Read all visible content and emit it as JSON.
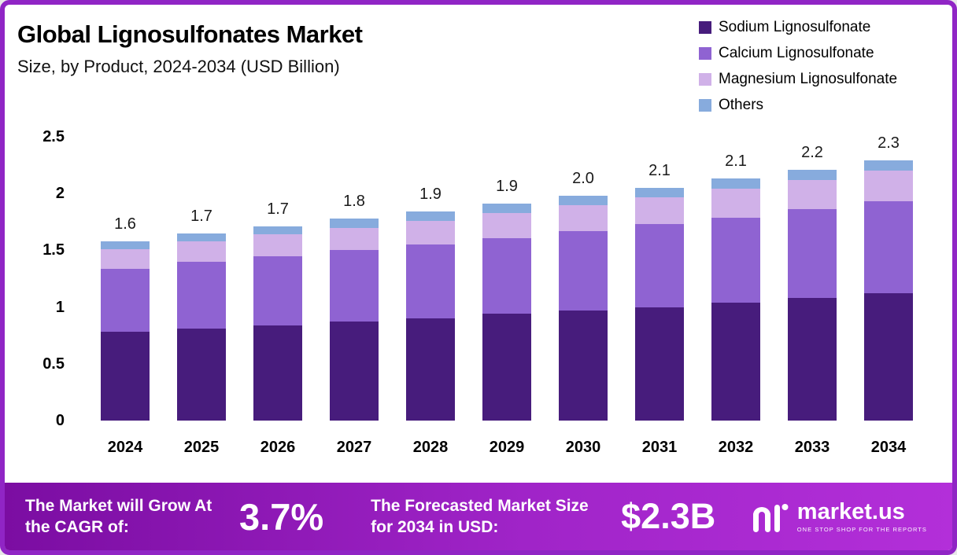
{
  "header": {
    "title": "Global Lignosulfonates Market",
    "subtitle": "Size, by Product, 2024-2034 (USD Billion)"
  },
  "legend": [
    {
      "label": "Sodium Lignosulfonate",
      "color": "#471c7c"
    },
    {
      "label": "Calcium Lignosulfonate",
      "color": "#8f63d2"
    },
    {
      "label": "Magnesium Lignosulfonate",
      "color": "#d0b1e8"
    },
    {
      "label": " Others",
      "color": "#87abdd"
    }
  ],
  "chart_data": {
    "type": "bar",
    "stacked": true,
    "title": "Global Lignosulfonates Market Size, by Product, 2024-2034 (USD Billion)",
    "categories": [
      "2024",
      "2025",
      "2026",
      "2027",
      "2028",
      "2029",
      "2030",
      "2031",
      "2032",
      "2033",
      "2034"
    ],
    "series": [
      {
        "name": "Sodium Lignosulfonate",
        "color": "#471c7c",
        "values": [
          0.78,
          0.81,
          0.84,
          0.87,
          0.9,
          0.94,
          0.97,
          1.0,
          1.04,
          1.08,
          1.12
        ]
      },
      {
        "name": "Calcium Lignosulfonate",
        "color": "#8f63d2",
        "values": [
          0.56,
          0.59,
          0.61,
          0.63,
          0.65,
          0.67,
          0.7,
          0.73,
          0.75,
          0.78,
          0.81
        ]
      },
      {
        "name": "Magnesium Lignosulfonate",
        "color": "#d0b1e8",
        "values": [
          0.17,
          0.18,
          0.19,
          0.2,
          0.21,
          0.22,
          0.23,
          0.24,
          0.25,
          0.26,
          0.27
        ]
      },
      {
        "name": "Others",
        "color": "#87abdd",
        "values": [
          0.07,
          0.07,
          0.07,
          0.08,
          0.08,
          0.08,
          0.08,
          0.08,
          0.09,
          0.09,
          0.09
        ]
      }
    ],
    "totals": [
      "1.6",
      "1.7",
      "1.7",
      "1.8",
      "1.9",
      "1.9",
      "2.0",
      "2.1",
      "2.1",
      "2.2",
      "2.3"
    ],
    "ylim": [
      0,
      2.5
    ],
    "yticks": [
      0,
      0.5,
      1,
      1.5,
      2,
      2.5
    ],
    "ytick_labels": [
      "0",
      "0.5",
      "1",
      "1.5",
      "2",
      "2.5"
    ],
    "xlabel": "",
    "ylabel": "",
    "grid": false,
    "legend_position": "top-right"
  },
  "banner": {
    "cagr_label": "The Market will Grow At the CAGR of:",
    "cagr_value": "3.7%",
    "forecast_label": "The Forecasted Market Size for 2034 in USD:",
    "forecast_value": "$2.3B",
    "brand": "market.us",
    "brand_tagline": "ONE STOP SHOP FOR THE REPORTS"
  }
}
